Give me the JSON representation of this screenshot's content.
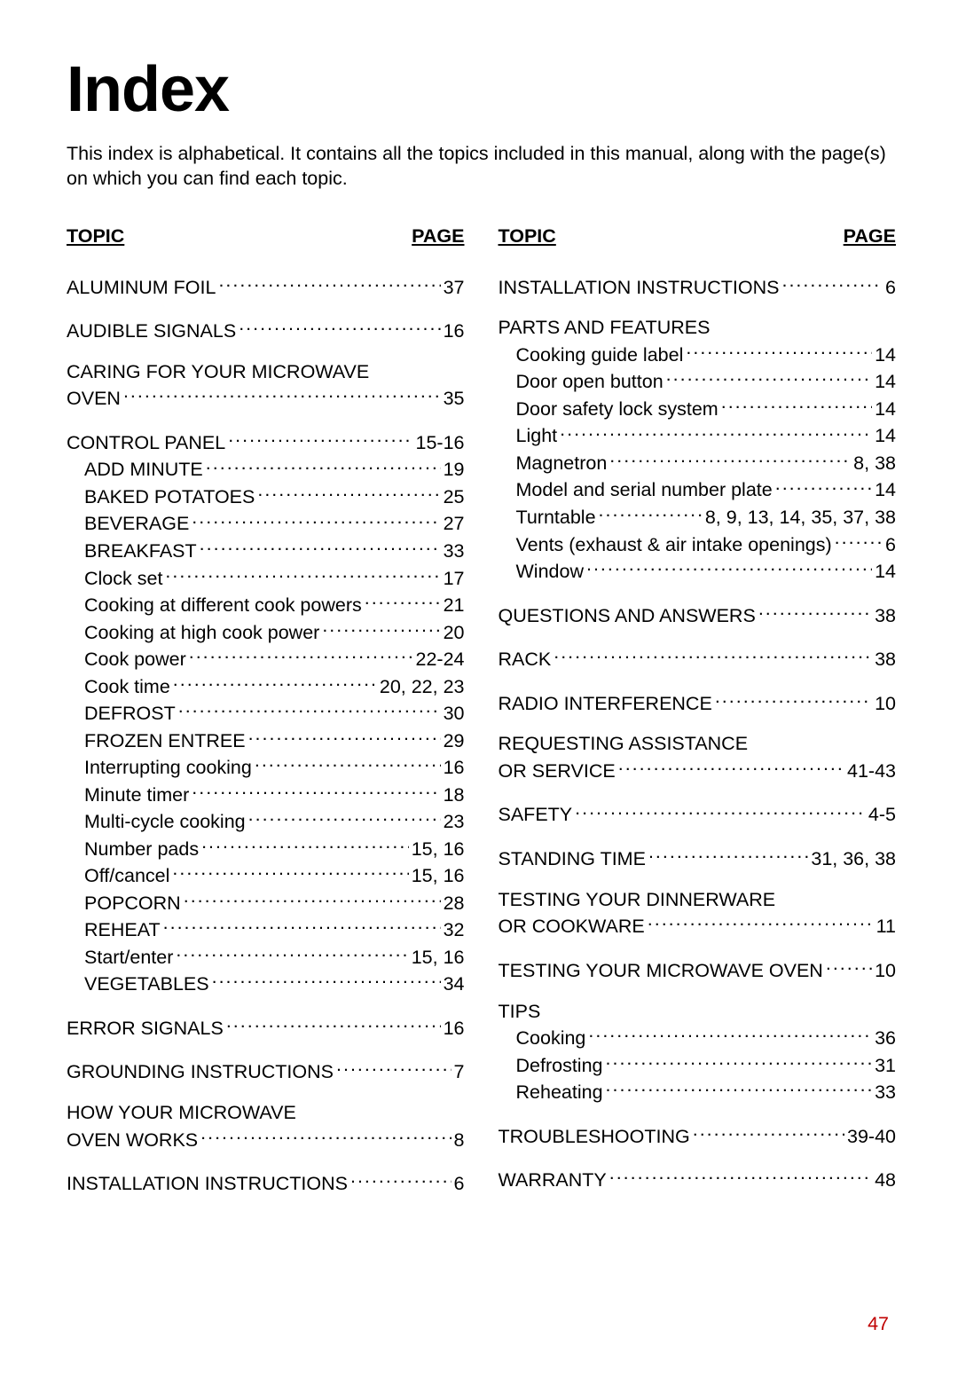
{
  "title": "Index",
  "intro": "This index is alphabetical. It contains all the topics included in this manual, along with the page(s) on which you can find each topic.",
  "header_topic": "TOPIC",
  "header_page": "PAGE",
  "page_number": "47",
  "page_number_color": "#c00000",
  "left": [
    {
      "type": "block",
      "lines": [
        {
          "label": "ALUMINUM FOIL",
          "page": "37"
        }
      ]
    },
    {
      "type": "block",
      "lines": [
        {
          "label": "AUDIBLE SIGNALS",
          "page": "16"
        }
      ]
    },
    {
      "type": "block",
      "lines": [
        {
          "label": "CARING FOR YOUR MICROWAVE",
          "nodots": true
        },
        {
          "label": "OVEN",
          "page": "35"
        }
      ]
    },
    {
      "type": "block",
      "lines": [
        {
          "label": "CONTROL PANEL",
          "page": "15-16"
        },
        {
          "label": "ADD MINUTE",
          "page": "19",
          "sub": true
        },
        {
          "label": "BAKED POTATOES",
          "page": "25",
          "sub": true
        },
        {
          "label": "BEVERAGE",
          "page": "27",
          "sub": true
        },
        {
          "label": "BREAKFAST",
          "page": "33",
          "sub": true
        },
        {
          "label": "Clock set",
          "page": "17",
          "sub": true
        },
        {
          "label": "Cooking at different cook powers",
          "page": "21",
          "sub": true
        },
        {
          "label": "Cooking at high cook power",
          "page": "20",
          "sub": true
        },
        {
          "label": "Cook power",
          "page": "22-24",
          "sub": true
        },
        {
          "label": "Cook time",
          "page": "20, 22, 23",
          "sub": true
        },
        {
          "label": "DEFROST",
          "page": "30",
          "sub": true
        },
        {
          "label": "FROZEN ENTREE",
          "page": "29",
          "sub": true
        },
        {
          "label": "Interrupting cooking",
          "page": "16",
          "sub": true
        },
        {
          "label": "Minute timer",
          "page": "18",
          "sub": true
        },
        {
          "label": "Multi-cycle cooking",
          "page": "23",
          "sub": true
        },
        {
          "label": "Number pads",
          "page": "15, 16",
          "sub": true
        },
        {
          "label": "Off/cancel",
          "page": "15, 16",
          "sub": true
        },
        {
          "label": "POPCORN",
          "page": "28",
          "sub": true
        },
        {
          "label": "REHEAT",
          "page": "32",
          "sub": true
        },
        {
          "label": "Start/enter",
          "page": "15, 16",
          "sub": true
        },
        {
          "label": "VEGETABLES",
          "page": "34",
          "sub": true
        }
      ]
    },
    {
      "type": "block",
      "lines": [
        {
          "label": "ERROR SIGNALS",
          "page": "16"
        }
      ]
    },
    {
      "type": "block",
      "lines": [
        {
          "label": "GROUNDING INSTRUCTIONS",
          "page": "7"
        }
      ]
    },
    {
      "type": "block",
      "lines": [
        {
          "label": "HOW YOUR MICROWAVE",
          "nodots": true
        },
        {
          "label": "OVEN WORKS",
          "page": "8"
        }
      ]
    },
    {
      "type": "block",
      "lines": [
        {
          "label": "INSTALLATION INSTRUCTIONS",
          "page": "6"
        }
      ]
    }
  ],
  "right": [
    {
      "type": "block",
      "lines": [
        {
          "label": "INSTALLATION INSTRUCTIONS",
          "page": "6"
        }
      ]
    },
    {
      "type": "block",
      "lines": [
        {
          "label": "PARTS AND FEATURES",
          "nodots": true
        },
        {
          "label": "Cooking guide label",
          "page": "14",
          "sub": true
        },
        {
          "label": "Door open button",
          "page": "14",
          "sub": true
        },
        {
          "label": "Door safety lock system",
          "page": "14",
          "sub": true
        },
        {
          "label": "Light",
          "page": "14",
          "sub": true
        },
        {
          "label": "Magnetron",
          "page": "8, 38",
          "sub": true
        },
        {
          "label": "Model and serial number plate",
          "page": "14",
          "sub": true
        },
        {
          "label": "Turntable",
          "page": "8, 9, 13, 14, 35, 37, 38",
          "sub": true
        },
        {
          "label": "Vents (exhaust & air intake openings)",
          "page": "6",
          "sub": true
        },
        {
          "label": "Window",
          "page": "14",
          "sub": true
        }
      ]
    },
    {
      "type": "block",
      "lines": [
        {
          "label": "QUESTIONS AND ANSWERS",
          "page": "38"
        }
      ]
    },
    {
      "type": "block",
      "lines": [
        {
          "label": "RACK",
          "page": "38"
        }
      ]
    },
    {
      "type": "block",
      "lines": [
        {
          "label": "RADIO INTERFERENCE",
          "page": "10"
        }
      ]
    },
    {
      "type": "block",
      "lines": [
        {
          "label": "REQUESTING ASSISTANCE",
          "nodots": true
        },
        {
          "label": "OR SERVICE",
          "page": "41-43"
        }
      ]
    },
    {
      "type": "block",
      "lines": [
        {
          "label": "SAFETY",
          "page": "4-5"
        }
      ]
    },
    {
      "type": "block",
      "lines": [
        {
          "label": "STANDING TIME",
          "page": "31, 36, 38"
        }
      ]
    },
    {
      "type": "block",
      "lines": [
        {
          "label": "TESTING YOUR DINNERWARE",
          "nodots": true
        },
        {
          "label": "OR COOKWARE",
          "page": "11"
        }
      ]
    },
    {
      "type": "block",
      "lines": [
        {
          "label": "TESTING YOUR MICROWAVE OVEN",
          "page": "10"
        }
      ]
    },
    {
      "type": "block",
      "lines": [
        {
          "label": "TIPS",
          "nodots": true
        },
        {
          "label": "Cooking",
          "page": "36",
          "sub": true
        },
        {
          "label": "Defrosting",
          "page": "31",
          "sub": true
        },
        {
          "label": "Reheating",
          "page": "33",
          "sub": true
        }
      ]
    },
    {
      "type": "block",
      "lines": [
        {
          "label": "TROUBLESHOOTING",
          "page": "39-40"
        }
      ]
    },
    {
      "type": "block",
      "lines": [
        {
          "label": "WARRANTY",
          "page": "48"
        }
      ]
    }
  ]
}
